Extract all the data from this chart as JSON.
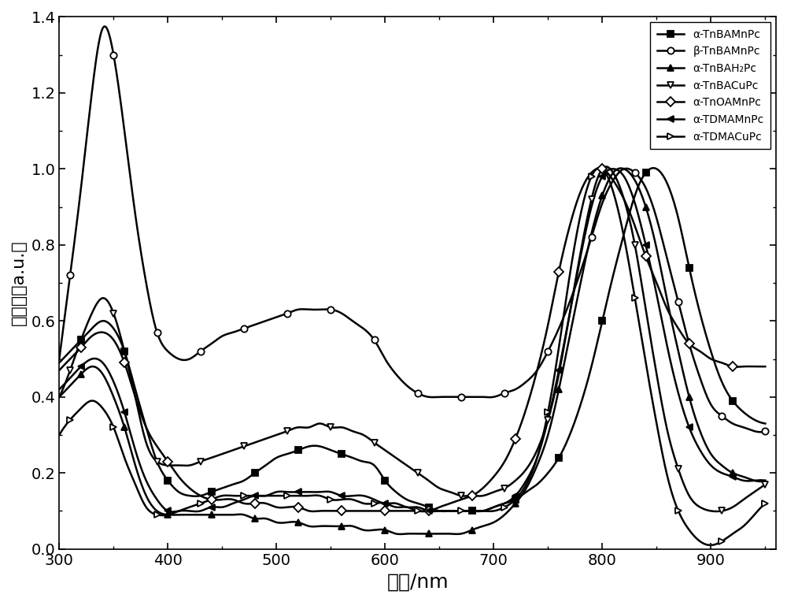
{
  "xlabel": "波长/nm",
  "ylabel": "吸光度（a.u.）",
  "xlim": [
    300,
    960
  ],
  "ylim": [
    0,
    1.4
  ],
  "yticks": [
    0.0,
    0.2,
    0.4,
    0.6,
    0.8,
    1.0,
    1.2,
    1.4
  ],
  "xticks": [
    300,
    400,
    500,
    600,
    700,
    800,
    900
  ],
  "series": [
    {
      "label": "α-TnBAMnPc",
      "marker": "s",
      "markerfacecolor": "black",
      "markersize": 6,
      "linewidth": 1.8,
      "x": [
        300,
        310,
        320,
        330,
        340,
        350,
        360,
        370,
        380,
        390,
        400,
        410,
        420,
        430,
        440,
        450,
        460,
        470,
        480,
        490,
        500,
        510,
        520,
        530,
        540,
        550,
        560,
        570,
        580,
        590,
        600,
        610,
        620,
        630,
        640,
        650,
        660,
        670,
        680,
        690,
        700,
        710,
        720,
        730,
        740,
        750,
        760,
        770,
        780,
        790,
        800,
        810,
        820,
        830,
        840,
        850,
        860,
        870,
        880,
        890,
        900,
        910,
        920,
        930,
        940,
        950
      ],
      "y": [
        0.49,
        0.52,
        0.55,
        0.58,
        0.6,
        0.58,
        0.52,
        0.42,
        0.32,
        0.23,
        0.18,
        0.15,
        0.14,
        0.14,
        0.15,
        0.16,
        0.17,
        0.18,
        0.2,
        0.22,
        0.24,
        0.25,
        0.26,
        0.27,
        0.27,
        0.26,
        0.25,
        0.24,
        0.23,
        0.22,
        0.18,
        0.15,
        0.13,
        0.12,
        0.11,
        0.1,
        0.1,
        0.1,
        0.1,
        0.1,
        0.11,
        0.12,
        0.13,
        0.15,
        0.17,
        0.2,
        0.24,
        0.3,
        0.38,
        0.48,
        0.6,
        0.72,
        0.83,
        0.93,
        0.99,
        1.0,
        0.96,
        0.87,
        0.74,
        0.62,
        0.52,
        0.44,
        0.39,
        0.36,
        0.34,
        0.33
      ],
      "marker_x": [
        320,
        360,
        400,
        440,
        480,
        520,
        560,
        600,
        640,
        680,
        720,
        760,
        800,
        840,
        880,
        920
      ]
    },
    {
      "label": "β-TnBAMnPc",
      "marker": "o",
      "markerfacecolor": "white",
      "markersize": 6,
      "linewidth": 1.8,
      "x": [
        300,
        310,
        320,
        330,
        340,
        350,
        360,
        370,
        380,
        390,
        400,
        410,
        420,
        430,
        440,
        450,
        460,
        470,
        480,
        490,
        500,
        510,
        520,
        530,
        540,
        550,
        560,
        570,
        580,
        590,
        600,
        610,
        620,
        630,
        640,
        650,
        660,
        670,
        680,
        690,
        700,
        710,
        720,
        730,
        740,
        750,
        760,
        770,
        780,
        790,
        800,
        810,
        820,
        830,
        840,
        850,
        860,
        870,
        880,
        890,
        900,
        910,
        920,
        930,
        940,
        950
      ],
      "y": [
        0.5,
        0.72,
        0.95,
        1.2,
        1.37,
        1.3,
        1.1,
        0.88,
        0.7,
        0.57,
        0.52,
        0.5,
        0.5,
        0.52,
        0.54,
        0.56,
        0.57,
        0.58,
        0.59,
        0.6,
        0.61,
        0.62,
        0.63,
        0.63,
        0.63,
        0.63,
        0.62,
        0.6,
        0.58,
        0.55,
        0.5,
        0.46,
        0.43,
        0.41,
        0.4,
        0.4,
        0.4,
        0.4,
        0.4,
        0.4,
        0.4,
        0.41,
        0.42,
        0.44,
        0.47,
        0.52,
        0.58,
        0.65,
        0.73,
        0.82,
        0.91,
        0.97,
        1.0,
        0.99,
        0.95,
        0.87,
        0.76,
        0.65,
        0.54,
        0.45,
        0.38,
        0.35,
        0.33,
        0.32,
        0.31,
        0.31
      ],
      "marker_x": [
        310,
        350,
        390,
        430,
        470,
        510,
        550,
        590,
        630,
        670,
        710,
        750,
        790,
        830,
        870,
        910,
        950
      ]
    },
    {
      "label": "α-TnBAH₂Pc",
      "marker": "^",
      "markerfacecolor": "black",
      "markersize": 6,
      "linewidth": 1.8,
      "x": [
        300,
        310,
        320,
        330,
        340,
        350,
        360,
        370,
        380,
        390,
        400,
        410,
        420,
        430,
        440,
        450,
        460,
        470,
        480,
        490,
        500,
        510,
        520,
        530,
        540,
        550,
        560,
        570,
        580,
        590,
        600,
        610,
        620,
        630,
        640,
        650,
        660,
        670,
        680,
        690,
        700,
        710,
        720,
        730,
        740,
        750,
        760,
        770,
        780,
        790,
        800,
        810,
        820,
        830,
        840,
        850,
        860,
        870,
        880,
        890,
        900,
        910,
        920,
        930,
        940,
        950
      ],
      "y": [
        0.4,
        0.43,
        0.46,
        0.48,
        0.46,
        0.4,
        0.32,
        0.22,
        0.14,
        0.1,
        0.09,
        0.09,
        0.09,
        0.09,
        0.09,
        0.09,
        0.09,
        0.09,
        0.08,
        0.08,
        0.07,
        0.07,
        0.07,
        0.06,
        0.06,
        0.06,
        0.06,
        0.06,
        0.05,
        0.05,
        0.05,
        0.04,
        0.04,
        0.04,
        0.04,
        0.04,
        0.04,
        0.04,
        0.05,
        0.06,
        0.07,
        0.09,
        0.12,
        0.16,
        0.22,
        0.3,
        0.42,
        0.56,
        0.7,
        0.83,
        0.93,
        0.99,
        1.0,
        0.97,
        0.9,
        0.79,
        0.65,
        0.52,
        0.4,
        0.31,
        0.25,
        0.22,
        0.2,
        0.19,
        0.18,
        0.18
      ],
      "marker_x": [
        320,
        360,
        400,
        440,
        480,
        520,
        560,
        600,
        640,
        680,
        720,
        760,
        800,
        840,
        880,
        920
      ]
    },
    {
      "label": "α-TnBACuPc",
      "marker": "v",
      "markerfacecolor": "white",
      "markersize": 6,
      "linewidth": 1.8,
      "x": [
        300,
        310,
        320,
        330,
        340,
        350,
        360,
        370,
        380,
        390,
        400,
        410,
        420,
        430,
        440,
        450,
        460,
        470,
        480,
        490,
        500,
        510,
        520,
        530,
        540,
        550,
        560,
        570,
        580,
        590,
        600,
        610,
        620,
        630,
        640,
        650,
        660,
        670,
        680,
        690,
        700,
        710,
        720,
        730,
        740,
        750,
        760,
        770,
        780,
        790,
        800,
        810,
        820,
        830,
        840,
        850,
        860,
        870,
        880,
        890,
        900,
        910,
        920,
        930,
        940,
        950
      ],
      "y": [
        0.4,
        0.47,
        0.55,
        0.62,
        0.66,
        0.62,
        0.52,
        0.4,
        0.28,
        0.23,
        0.22,
        0.22,
        0.22,
        0.23,
        0.24,
        0.25,
        0.26,
        0.27,
        0.28,
        0.29,
        0.3,
        0.31,
        0.32,
        0.32,
        0.33,
        0.32,
        0.32,
        0.31,
        0.3,
        0.28,
        0.26,
        0.24,
        0.22,
        0.2,
        0.18,
        0.16,
        0.15,
        0.14,
        0.14,
        0.14,
        0.15,
        0.16,
        0.18,
        0.21,
        0.26,
        0.34,
        0.46,
        0.62,
        0.78,
        0.92,
        1.0,
        0.99,
        0.92,
        0.8,
        0.63,
        0.46,
        0.31,
        0.21,
        0.14,
        0.11,
        0.1,
        0.1,
        0.11,
        0.13,
        0.15,
        0.17
      ],
      "marker_x": [
        310,
        350,
        390,
        430,
        470,
        510,
        550,
        590,
        630,
        670,
        710,
        750,
        790,
        830,
        870,
        910,
        950
      ]
    },
    {
      "label": "α-TnOAMnPc",
      "marker": "D",
      "markerfacecolor": "white",
      "markersize": 6,
      "linewidth": 1.8,
      "x": [
        300,
        310,
        320,
        330,
        340,
        350,
        360,
        370,
        380,
        390,
        400,
        410,
        420,
        430,
        440,
        450,
        460,
        470,
        480,
        490,
        500,
        510,
        520,
        530,
        540,
        550,
        560,
        570,
        580,
        590,
        600,
        610,
        620,
        630,
        640,
        650,
        660,
        670,
        680,
        690,
        700,
        710,
        720,
        730,
        740,
        750,
        760,
        770,
        780,
        790,
        800,
        810,
        820,
        830,
        840,
        850,
        860,
        870,
        880,
        890,
        900,
        910,
        920,
        930,
        940,
        950
      ],
      "y": [
        0.47,
        0.5,
        0.53,
        0.56,
        0.57,
        0.55,
        0.49,
        0.4,
        0.32,
        0.27,
        0.23,
        0.19,
        0.16,
        0.14,
        0.13,
        0.13,
        0.13,
        0.12,
        0.12,
        0.12,
        0.11,
        0.11,
        0.11,
        0.1,
        0.1,
        0.1,
        0.1,
        0.1,
        0.1,
        0.1,
        0.1,
        0.1,
        0.1,
        0.1,
        0.1,
        0.11,
        0.12,
        0.13,
        0.14,
        0.16,
        0.19,
        0.23,
        0.29,
        0.37,
        0.47,
        0.59,
        0.73,
        0.85,
        0.94,
        0.99,
        1.0,
        0.97,
        0.92,
        0.85,
        0.77,
        0.7,
        0.63,
        0.58,
        0.54,
        0.52,
        0.5,
        0.49,
        0.48,
        0.48,
        0.48,
        0.48
      ],
      "marker_x": [
        320,
        360,
        400,
        440,
        480,
        520,
        560,
        600,
        640,
        680,
        720,
        760,
        800,
        840,
        880,
        920
      ]
    },
    {
      "label": "α-TDMAMnPc",
      "marker": "<",
      "markerfacecolor": "black",
      "markersize": 6,
      "linewidth": 1.8,
      "x": [
        300,
        310,
        320,
        330,
        340,
        350,
        360,
        370,
        380,
        390,
        400,
        410,
        420,
        430,
        440,
        450,
        460,
        470,
        480,
        490,
        500,
        510,
        520,
        530,
        540,
        550,
        560,
        570,
        580,
        590,
        600,
        610,
        620,
        630,
        640,
        650,
        660,
        670,
        680,
        690,
        700,
        710,
        720,
        730,
        740,
        750,
        760,
        770,
        780,
        790,
        800,
        810,
        820,
        830,
        840,
        850,
        860,
        870,
        880,
        890,
        900,
        910,
        920,
        930,
        940,
        950
      ],
      "y": [
        0.42,
        0.45,
        0.48,
        0.5,
        0.49,
        0.44,
        0.36,
        0.26,
        0.18,
        0.13,
        0.1,
        0.1,
        0.1,
        0.1,
        0.11,
        0.11,
        0.12,
        0.13,
        0.14,
        0.14,
        0.15,
        0.15,
        0.15,
        0.15,
        0.15,
        0.15,
        0.14,
        0.14,
        0.14,
        0.13,
        0.12,
        0.12,
        0.11,
        0.11,
        0.1,
        0.1,
        0.1,
        0.1,
        0.1,
        0.1,
        0.11,
        0.12,
        0.14,
        0.18,
        0.24,
        0.34,
        0.47,
        0.62,
        0.77,
        0.9,
        0.98,
        1.0,
        0.98,
        0.91,
        0.8,
        0.67,
        0.53,
        0.41,
        0.32,
        0.26,
        0.22,
        0.2,
        0.19,
        0.18,
        0.18,
        0.18
      ],
      "marker_x": [
        320,
        360,
        400,
        440,
        480,
        520,
        560,
        600,
        640,
        680,
        720,
        760,
        800,
        840,
        880,
        920
      ]
    },
    {
      "label": "α-TDMACuPc",
      "marker": ">",
      "markerfacecolor": "white",
      "markersize": 6,
      "linewidth": 1.8,
      "x": [
        300,
        310,
        320,
        330,
        340,
        350,
        360,
        370,
        380,
        390,
        400,
        410,
        420,
        430,
        440,
        450,
        460,
        470,
        480,
        490,
        500,
        510,
        520,
        530,
        540,
        550,
        560,
        570,
        580,
        590,
        600,
        610,
        620,
        630,
        640,
        650,
        660,
        670,
        680,
        690,
        700,
        710,
        720,
        730,
        740,
        750,
        760,
        770,
        780,
        790,
        800,
        810,
        820,
        830,
        840,
        850,
        860,
        870,
        880,
        890,
        900,
        910,
        920,
        930,
        940,
        950
      ],
      "y": [
        0.3,
        0.34,
        0.37,
        0.39,
        0.37,
        0.32,
        0.24,
        0.17,
        0.11,
        0.09,
        0.09,
        0.1,
        0.11,
        0.12,
        0.13,
        0.14,
        0.14,
        0.14,
        0.14,
        0.14,
        0.14,
        0.14,
        0.14,
        0.14,
        0.14,
        0.13,
        0.13,
        0.13,
        0.12,
        0.12,
        0.12,
        0.11,
        0.11,
        0.1,
        0.1,
        0.1,
        0.1,
        0.1,
        0.1,
        0.1,
        0.1,
        0.11,
        0.13,
        0.17,
        0.24,
        0.36,
        0.53,
        0.72,
        0.88,
        0.98,
        1.0,
        0.94,
        0.82,
        0.66,
        0.49,
        0.33,
        0.19,
        0.1,
        0.05,
        0.02,
        0.01,
        0.02,
        0.04,
        0.06,
        0.09,
        0.12
      ],
      "marker_x": [
        310,
        350,
        390,
        430,
        470,
        510,
        550,
        590,
        630,
        670,
        710,
        750,
        790,
        830,
        870,
        910,
        950
      ]
    }
  ]
}
